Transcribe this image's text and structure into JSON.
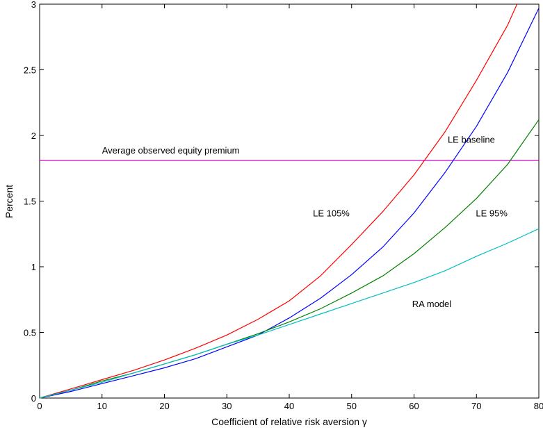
{
  "chart_data": {
    "type": "line",
    "xlabel": "Coefficient of relative risk aversion γ",
    "ylabel": "Percent",
    "xlim": [
      0,
      80
    ],
    "ylim": [
      0,
      3
    ],
    "x_ticks": [
      0,
      10,
      20,
      30,
      40,
      50,
      60,
      70,
      80
    ],
    "y_ticks": [
      0,
      0.5,
      1,
      1.5,
      2,
      2.5,
      3
    ],
    "x_tick_labels": [
      "0",
      "10",
      "20",
      "30",
      "40",
      "50",
      "60",
      "70",
      "80"
    ],
    "y_tick_labels": [
      "0",
      "0.5",
      "1",
      "1.5",
      "2",
      "2.5",
      "3"
    ],
    "grid": false,
    "reference_line": {
      "y": 1.81,
      "color": "#bf00bf",
      "label": "Average observed equity premium"
    },
    "series": [
      {
        "name": "LE 105%",
        "color": "#ff0000",
        "x": [
          0,
          5,
          10,
          15,
          20,
          25,
          30,
          35,
          40,
          45,
          50,
          55,
          60,
          65,
          70,
          75,
          76.5
        ],
        "y": [
          0,
          0.07,
          0.14,
          0.21,
          0.29,
          0.38,
          0.48,
          0.6,
          0.74,
          0.93,
          1.17,
          1.42,
          1.7,
          2.03,
          2.42,
          2.84,
          3.0
        ]
      },
      {
        "name": "LE baseline",
        "color": "#0000ff",
        "x": [
          0,
          5,
          10,
          15,
          20,
          25,
          30,
          35,
          40,
          45,
          50,
          55,
          60,
          65,
          70,
          75,
          80
        ],
        "y": [
          0,
          0.05,
          0.11,
          0.17,
          0.23,
          0.3,
          0.39,
          0.48,
          0.61,
          0.76,
          0.94,
          1.15,
          1.41,
          1.72,
          2.07,
          2.48,
          2.97
        ]
      },
      {
        "name": "LE 95%",
        "color": "#008000",
        "x": [
          0,
          5,
          10,
          15,
          20,
          25,
          30,
          35,
          40,
          45,
          50,
          55,
          60,
          65,
          70,
          75,
          80
        ],
        "y": [
          0,
          0.06,
          0.13,
          0.19,
          0.26,
          0.33,
          0.41,
          0.49,
          0.58,
          0.68,
          0.8,
          0.93,
          1.1,
          1.3,
          1.52,
          1.78,
          2.12
        ]
      },
      {
        "name": "RA model",
        "color": "#00bfbf",
        "x": [
          0,
          5,
          10,
          15,
          20,
          25,
          30,
          35,
          40,
          45,
          50,
          55,
          60,
          65,
          70,
          75,
          80
        ],
        "y": [
          0,
          0.06,
          0.12,
          0.19,
          0.26,
          0.33,
          0.41,
          0.48,
          0.56,
          0.64,
          0.72,
          0.8,
          0.88,
          0.97,
          1.08,
          1.18,
          1.29
        ]
      }
    ],
    "annotations": [
      {
        "text": "LE baseline",
        "x": 65.4,
        "y": 1.97
      },
      {
        "text": "LE 105%",
        "x": 43.8,
        "y": 1.41
      },
      {
        "text": "LE 95%",
        "x": 69.9,
        "y": 1.41
      },
      {
        "text": "RA model",
        "x": 59.7,
        "y": 0.72
      }
    ]
  }
}
